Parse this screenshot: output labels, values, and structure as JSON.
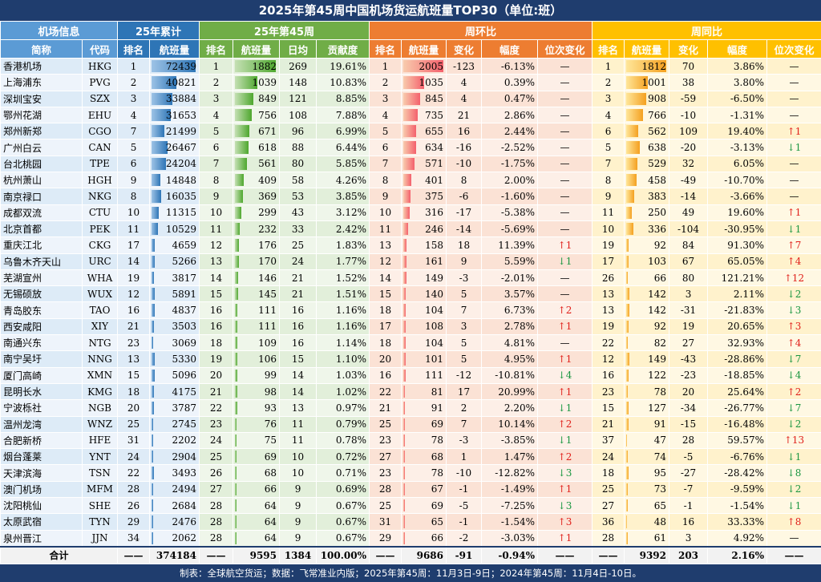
{
  "title": "2025年第45周中国机场货运航班量TOP30（单位:班）",
  "groups": [
    "机场信息",
    "25年累计",
    "25年第45周",
    "周环比",
    "周同比"
  ],
  "columns": [
    "简称",
    "代码",
    "排名",
    "航班量",
    "排名",
    "航班量",
    "日均",
    "贡献度",
    "排名",
    "航班量",
    "变化",
    "幅度",
    "位次变化",
    "排名",
    "航班量",
    "变化",
    "幅度",
    "位次变化"
  ],
  "rows": [
    [
      "香港机场",
      "HKG",
      1,
      72439,
      1,
      1882,
      269,
      "19.61%",
      1,
      2005,
      -123,
      "-6.13%",
      "—",
      1,
      1812,
      70,
      "3.86%",
      "—"
    ],
    [
      "上海浦东",
      "PVG",
      2,
      40821,
      2,
      1039,
      148,
      "10.83%",
      2,
      1035,
      4,
      "0.39%",
      "—",
      2,
      1001,
      38,
      "3.80%",
      "—"
    ],
    [
      "深圳宝安",
      "SZX",
      3,
      33884,
      3,
      849,
      121,
      "8.85%",
      3,
      845,
      4,
      "0.47%",
      "—",
      3,
      908,
      -59,
      "-6.50%",
      "—"
    ],
    [
      "鄂州花湖",
      "EHU",
      4,
      31653,
      4,
      756,
      108,
      "7.88%",
      4,
      735,
      21,
      "2.86%",
      "—",
      4,
      766,
      -10,
      "-1.31%",
      "—"
    ],
    [
      "郑州新郑",
      "CGO",
      7,
      21499,
      5,
      671,
      96,
      "6.99%",
      5,
      655,
      16,
      "2.44%",
      "—",
      6,
      562,
      109,
      "19.40%",
      "↑1"
    ],
    [
      "广州白云",
      "CAN",
      5,
      26467,
      6,
      618,
      88,
      "6.44%",
      6,
      634,
      -16,
      "-2.52%",
      "—",
      5,
      638,
      -20,
      "-3.13%",
      "↓1"
    ],
    [
      "台北桃园",
      "TPE",
      6,
      24204,
      7,
      561,
      80,
      "5.85%",
      7,
      571,
      -10,
      "-1.75%",
      "—",
      7,
      529,
      32,
      "6.05%",
      "—"
    ],
    [
      "杭州萧山",
      "HGH",
      9,
      14848,
      8,
      409,
      58,
      "4.26%",
      8,
      401,
      8,
      "2.00%",
      "—",
      8,
      458,
      -49,
      "-10.70%",
      "—"
    ],
    [
      "南京禄口",
      "NKG",
      8,
      16035,
      9,
      369,
      53,
      "3.85%",
      9,
      375,
      -6,
      "-1.60%",
      "—",
      9,
      383,
      -14,
      "-3.66%",
      "—"
    ],
    [
      "成都双流",
      "CTU",
      10,
      11315,
      10,
      299,
      43,
      "3.12%",
      10,
      316,
      -17,
      "-5.38%",
      "—",
      11,
      250,
      49,
      "19.60%",
      "↑1"
    ],
    [
      "北京首都",
      "PEK",
      11,
      10529,
      11,
      232,
      33,
      "2.42%",
      11,
      246,
      -14,
      "-5.69%",
      "—",
      10,
      336,
      -104,
      "-30.95%",
      "↓1"
    ],
    [
      "重庆江北",
      "CKG",
      17,
      4659,
      12,
      176,
      25,
      "1.83%",
      13,
      158,
      18,
      "11.39%",
      "↑1",
      19,
      92,
      84,
      "91.30%",
      "↑7"
    ],
    [
      "乌鲁木齐天山",
      "URC",
      14,
      5266,
      13,
      170,
      24,
      "1.77%",
      12,
      161,
      9,
      "5.59%",
      "↓1",
      17,
      103,
      67,
      "65.05%",
      "↑4"
    ],
    [
      "芜湖宣州",
      "WHA",
      19,
      3817,
      14,
      146,
      21,
      "1.52%",
      14,
      149,
      -3,
      "-2.01%",
      "—",
      26,
      66,
      80,
      "121.21%",
      "↑12"
    ],
    [
      "无锡硕放",
      "WUX",
      12,
      5891,
      15,
      145,
      21,
      "1.51%",
      15,
      140,
      5,
      "3.57%",
      "—",
      13,
      142,
      3,
      "2.11%",
      "↓2"
    ],
    [
      "青岛胶东",
      "TAO",
      16,
      4837,
      16,
      111,
      16,
      "1.16%",
      18,
      104,
      7,
      "6.73%",
      "↑2",
      13,
      142,
      -31,
      "-21.83%",
      "↓3"
    ],
    [
      "西安咸阳",
      "XIY",
      21,
      3503,
      16,
      111,
      16,
      "1.16%",
      17,
      108,
      3,
      "2.78%",
      "↑1",
      19,
      92,
      19,
      "20.65%",
      "↑3"
    ],
    [
      "南通兴东",
      "NTG",
      23,
      3069,
      18,
      109,
      16,
      "1.14%",
      18,
      104,
      5,
      "4.81%",
      "—",
      22,
      82,
      27,
      "32.93%",
      "↑4"
    ],
    [
      "南宁吴圩",
      "NNG",
      13,
      5330,
      19,
      106,
      15,
      "1.10%",
      20,
      101,
      5,
      "4.95%",
      "↑1",
      12,
      149,
      -43,
      "-28.86%",
      "↓7"
    ],
    [
      "厦门高崎",
      "XMN",
      15,
      5096,
      20,
      99,
      14,
      "1.03%",
      16,
      111,
      -12,
      "-10.81%",
      "↓4",
      16,
      122,
      -23,
      "-18.85%",
      "↓4"
    ],
    [
      "昆明长水",
      "KMG",
      18,
      4175,
      21,
      98,
      14,
      "1.02%",
      22,
      81,
      17,
      "20.99%",
      "↑1",
      23,
      78,
      20,
      "25.64%",
      "↑2"
    ],
    [
      "宁波栎社",
      "NGB",
      20,
      3787,
      22,
      93,
      13,
      "0.97%",
      21,
      91,
      2,
      "2.20%",
      "↓1",
      15,
      127,
      -34,
      "-26.77%",
      "↓7"
    ],
    [
      "温州龙湾",
      "WNZ",
      25,
      2745,
      23,
      76,
      11,
      "0.79%",
      25,
      69,
      7,
      "10.14%",
      "↑2",
      21,
      91,
      -15,
      "-16.48%",
      "↓2"
    ],
    [
      "合肥新桥",
      "HFE",
      31,
      2202,
      24,
      75,
      11,
      "0.78%",
      23,
      78,
      -3,
      "-3.85%",
      "↓1",
      37,
      47,
      28,
      "59.57%",
      "↑13"
    ],
    [
      "烟台蓬莱",
      "YNT",
      24,
      2904,
      25,
      69,
      10,
      "0.72%",
      27,
      68,
      1,
      "1.47%",
      "↑2",
      24,
      74,
      -5,
      "-6.76%",
      "↓1"
    ],
    [
      "天津滨海",
      "TSN",
      22,
      3493,
      26,
      68,
      10,
      "0.71%",
      23,
      78,
      -10,
      "-12.82%",
      "↓3",
      18,
      95,
      -27,
      "-28.42%",
      "↓8"
    ],
    [
      "澳门机场",
      "MFM",
      28,
      2494,
      27,
      66,
      9,
      "0.69%",
      28,
      67,
      -1,
      "-1.49%",
      "↑1",
      25,
      73,
      -7,
      "-9.59%",
      "↓2"
    ],
    [
      "沈阳桃仙",
      "SHE",
      26,
      2684,
      28,
      64,
      9,
      "0.67%",
      25,
      69,
      -5,
      "-7.25%",
      "↓3",
      27,
      65,
      -1,
      "-1.54%",
      "↓1"
    ],
    [
      "太原武宿",
      "TYN",
      29,
      2476,
      28,
      64,
      9,
      "0.67%",
      31,
      65,
      -1,
      "-1.54%",
      "↑3",
      36,
      48,
      16,
      "33.33%",
      "↑8"
    ],
    [
      "泉州晋江",
      "JJN",
      34,
      2062,
      28,
      64,
      9,
      "0.67%",
      29,
      66,
      -2,
      "-3.03%",
      "↑1",
      28,
      61,
      3,
      "4.92%",
      "—"
    ]
  ],
  "total": {
    "label": "合计",
    "cells": [
      "——",
      374184,
      "——",
      9595,
      1384,
      "100.00%",
      "——",
      9686,
      -91,
      "-0.94%",
      "——",
      "——",
      9392,
      203,
      "2.16%",
      "——"
    ]
  },
  "footer": "制表：全球航空货运；数据：飞常准业内版；2025年第45周：11月3日-9日；2024年第45周：11月4日-10日。"
}
